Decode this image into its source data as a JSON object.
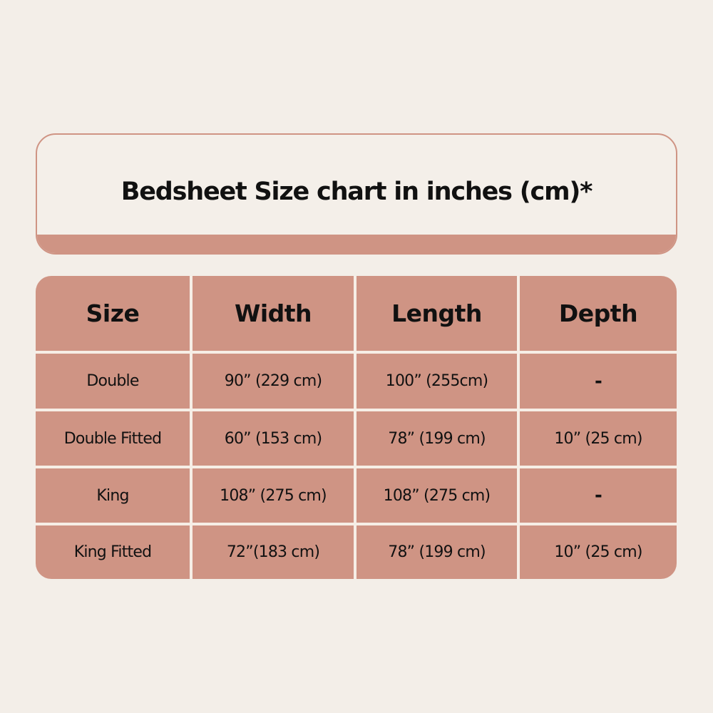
{
  "title": "Bedsheet Size chart in inches (cm)*",
  "colors": {
    "background": "#f3eee8",
    "accent": "#cf9484"
  },
  "table": {
    "headers": [
      "Size",
      "Width",
      "Length",
      "Depth"
    ],
    "rows": [
      [
        "Double",
        "90” (229 cm)",
        "100” (255cm)",
        "-"
      ],
      [
        "Double Fitted",
        "60” (153 cm)",
        "78” (199 cm)",
        "10” (25 cm)"
      ],
      [
        "King",
        "108” (275 cm)",
        "108” (275 cm)",
        "-"
      ],
      [
        "King Fitted",
        "72”(183 cm)",
        "78” (199 cm)",
        "10” (25 cm)"
      ]
    ]
  }
}
